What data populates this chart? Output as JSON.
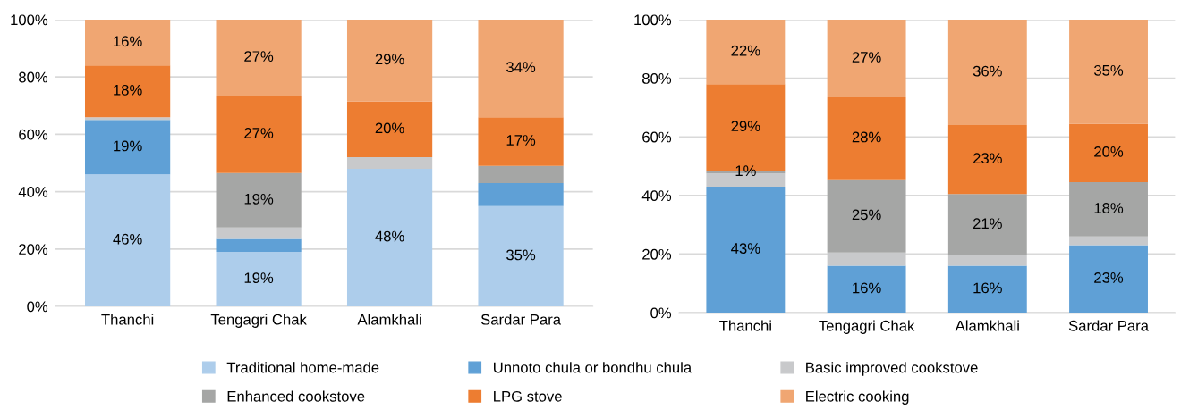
{
  "chart_data": [
    {
      "type": "bar",
      "stacked": true,
      "categories": [
        "Thanchi",
        "Tengagri Chak",
        "Alamkhali",
        "Sardar Para"
      ],
      "ylim": [
        0,
        100
      ],
      "yticks": [
        {
          "value": 0,
          "label": "0%"
        },
        {
          "value": 20,
          "label": "20%"
        },
        {
          "value": 40,
          "label": "40%"
        },
        {
          "value": 60,
          "label": "60%"
        },
        {
          "value": 80,
          "label": "80%"
        },
        {
          "value": 100,
          "label": "100%"
        }
      ],
      "grid": "y",
      "legend": "bottom",
      "series": [
        {
          "name": "Traditional home-made",
          "color": "#adcdeb",
          "values": [
            46,
            19,
            48,
            35
          ],
          "value_labels": [
            "46%",
            "19%",
            "48%",
            "35%"
          ]
        },
        {
          "name": "Unnoto chula or bondhu chula",
          "color": "#5fa0d6",
          "values": [
            19,
            4.5,
            null,
            8
          ],
          "value_labels": [
            "19%",
            null,
            null,
            null
          ]
        },
        {
          "name": "Basic improved cookstove",
          "color": "#c8c9cb",
          "values": [
            1,
            4,
            4,
            null
          ],
          "value_labels": [
            null,
            null,
            null,
            null
          ]
        },
        {
          "name": "Enhanced cookstove",
          "color": "#a5a6a5",
          "values": [
            null,
            19,
            null,
            6
          ],
          "value_labels": [
            null,
            "19%",
            null,
            null
          ]
        },
        {
          "name": "LPG stove",
          "color": "#ed7d31",
          "values": [
            18,
            27,
            19.5,
            17
          ],
          "value_labels": [
            "18%",
            "27%",
            "20%",
            "17%"
          ]
        },
        {
          "name": "Electric cooking",
          "color": "#f0a672",
          "values": [
            16,
            26.5,
            28.5,
            34
          ],
          "value_labels": [
            "16%",
            "27%",
            "29%",
            "34%"
          ]
        }
      ]
    },
    {
      "type": "bar",
      "stacked": true,
      "categories": [
        "Thanchi",
        "Tengagri Chak",
        "Alamkhali",
        "Sardar Para"
      ],
      "ylim": [
        0,
        100
      ],
      "yticks": [
        {
          "value": 0,
          "label": "0%"
        },
        {
          "value": 20,
          "label": "20%"
        },
        {
          "value": 40,
          "label": "40%"
        },
        {
          "value": 60,
          "label": "60%"
        },
        {
          "value": 80,
          "label": "80%"
        },
        {
          "value": 100,
          "label": "100%"
        }
      ],
      "grid": "y",
      "series": [
        {
          "color": "#adcdeb",
          "values": [
            null,
            null,
            null,
            null
          ],
          "value_labels": [
            null,
            null,
            null,
            null
          ]
        },
        {
          "color": "#5fa0d6",
          "values": [
            43,
            16,
            16,
            23
          ],
          "value_labels": [
            "43%",
            "16%",
            "16%",
            "23%"
          ]
        },
        {
          "color": "#c8c9cb",
          "values": [
            4.5,
            4.5,
            3.5,
            3
          ],
          "value_labels": [
            null,
            null,
            null,
            null
          ]
        },
        {
          "color": "#a5a6a5",
          "values": [
            1,
            25,
            21,
            18.5
          ],
          "value_labels": [
            "1%",
            "25%",
            "21%",
            "18%"
          ]
        },
        {
          "color": "#ed7d31",
          "values": [
            29.5,
            28,
            23.5,
            20
          ],
          "value_labels": [
            "29%",
            "28%",
            "23%",
            "20%"
          ]
        },
        {
          "color": "#f0a672",
          "values": [
            22,
            26.5,
            36,
            35.5
          ],
          "value_labels": [
            "22%",
            "27%",
            "36%",
            "35%"
          ]
        }
      ]
    }
  ]
}
